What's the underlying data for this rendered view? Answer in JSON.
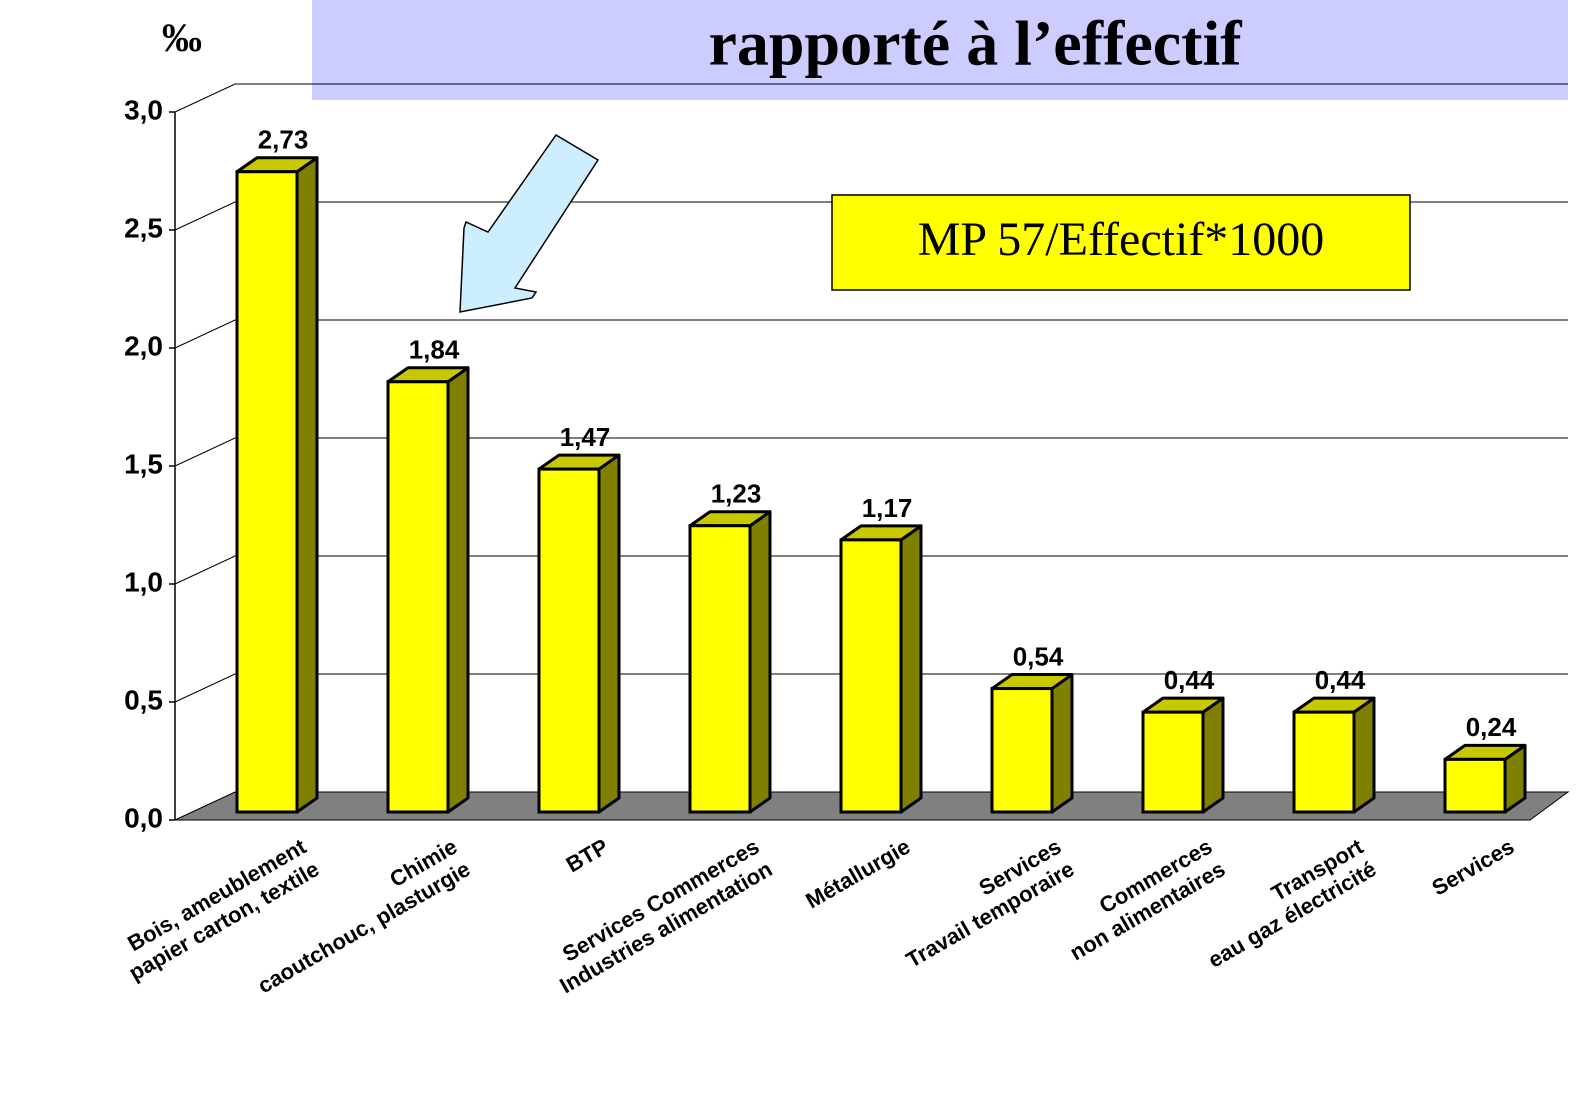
{
  "chart_data": {
    "type": "bar3d",
    "title": "rapporté à l’effectif",
    "ylabel": "‰",
    "annotation": "MP 57/Effectif*1000",
    "categories": [
      [
        "Bois, ameublement",
        "papier carton, textile"
      ],
      [
        "Chimie",
        "caoutchouc, plasturgie"
      ],
      [
        "BTP"
      ],
      [
        "Services Commerces",
        "Industries alimentation"
      ],
      [
        "Métallurgie"
      ],
      [
        "Services",
        "Travail temporaire"
      ],
      [
        "Commerces",
        "non alimentaires"
      ],
      [
        "Transport",
        "eau gaz électricité"
      ],
      [
        "Services"
      ]
    ],
    "values": [
      2.73,
      1.84,
      1.47,
      1.23,
      1.17,
      0.54,
      0.44,
      0.44,
      0.24
    ],
    "value_labels": [
      "2,73",
      "1,84",
      "1,47",
      "1,23",
      "1,17",
      "0,54",
      "0,44",
      "0,44",
      "0,24"
    ],
    "color": "#ffff00",
    "ylim": [
      0,
      3
    ],
    "yticks": [
      {
        "value": 0,
        "label": "0,0"
      },
      {
        "value": 0.5,
        "label": "0,5"
      },
      {
        "value": 1,
        "label": "1,0"
      },
      {
        "value": 1.5,
        "label": "1,5"
      },
      {
        "value": 2,
        "label": "2,0"
      },
      {
        "value": 2.5,
        "label": "2,5"
      },
      {
        "value": 3,
        "label": "3,0"
      }
    ],
    "grid": true
  }
}
